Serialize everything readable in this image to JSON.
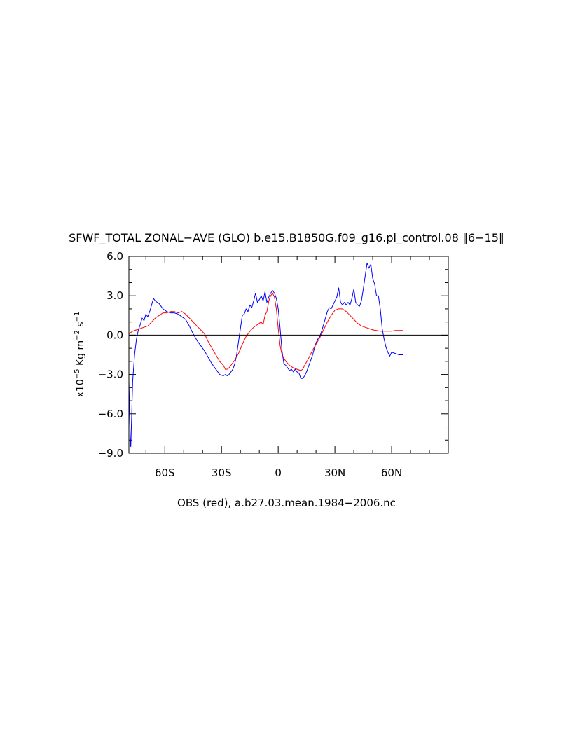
{
  "chart_data": {
    "type": "line",
    "title": "SFWF_TOTAL ZONAL−AVE (GLO) b.e15.B1850G.f09_g16.pi_control.08 ‖6−15‖",
    "xlabel": "OBS (red), a.b27.03.mean.1984−2006.nc",
    "ylabel": {
      "prefix": "x10",
      "exp1": "−5",
      "mid": " Kg m",
      "exp2": "−2",
      "mid2": " s",
      "exp3": "−1"
    },
    "xlim": [
      -79,
      90
    ],
    "ylim": [
      -9.0,
      6.0
    ],
    "x_ticks": [
      {
        "value": -60,
        "label": "60S"
      },
      {
        "value": -30,
        "label": "30S"
      },
      {
        "value": 0,
        "label": "0"
      },
      {
        "value": 30,
        "label": "30N"
      },
      {
        "value": 60,
        "label": "60N"
      }
    ],
    "y_ticks": [
      {
        "value": 6.0,
        "label": "6.0"
      },
      {
        "value": 3.0,
        "label": "3.0"
      },
      {
        "value": 0.0,
        "label": "0.0"
      },
      {
        "value": -3.0,
        "label": "−3.0"
      },
      {
        "value": -6.0,
        "label": "−6.0"
      },
      {
        "value": -9.0,
        "label": "−9.0"
      }
    ],
    "reference_line": 0.0,
    "grid": false,
    "legend": "none",
    "series": [
      {
        "color": "#0000ff",
        "points": [
          [
            -79,
            -3.5
          ],
          [
            -78.3,
            -8.0
          ],
          [
            -78,
            -8.5
          ],
          [
            -77.7,
            -7.0
          ],
          [
            -77,
            -3.5
          ],
          [
            -76,
            -1.5
          ],
          [
            -75,
            -0.3
          ],
          [
            -74,
            0.4
          ],
          [
            -73,
            0.8
          ],
          [
            -72,
            1.3
          ],
          [
            -71,
            1.1
          ],
          [
            -70,
            1.6
          ],
          [
            -69,
            1.4
          ],
          [
            -68,
            1.8
          ],
          [
            -67,
            2.3
          ],
          [
            -66,
            2.8
          ],
          [
            -65,
            2.6
          ],
          [
            -63,
            2.4
          ],
          [
            -61,
            2.0
          ],
          [
            -59,
            1.8
          ],
          [
            -57,
            1.7
          ],
          [
            -55,
            1.7
          ],
          [
            -53,
            1.6
          ],
          [
            -51,
            1.4
          ],
          [
            -49,
            1.2
          ],
          [
            -47,
            0.7
          ],
          [
            -45,
            0.1
          ],
          [
            -43,
            -0.4
          ],
          [
            -41,
            -0.8
          ],
          [
            -39,
            -1.2
          ],
          [
            -37,
            -1.7
          ],
          [
            -35,
            -2.2
          ],
          [
            -33,
            -2.6
          ],
          [
            -31,
            -3.0
          ],
          [
            -29,
            -3.1
          ],
          [
            -28,
            -3.0
          ],
          [
            -27,
            -3.1
          ],
          [
            -26,
            -3.0
          ],
          [
            -25,
            -2.8
          ],
          [
            -24,
            -2.6
          ],
          [
            -23,
            -2.2
          ],
          [
            -22,
            -1.5
          ],
          [
            -21,
            -0.5
          ],
          [
            -20,
            0.5
          ],
          [
            -19,
            1.5
          ],
          [
            -18,
            1.6
          ],
          [
            -17,
            2.0
          ],
          [
            -16,
            1.8
          ],
          [
            -15,
            2.3
          ],
          [
            -14,
            2.1
          ],
          [
            -13,
            2.6
          ],
          [
            -12,
            3.2
          ],
          [
            -11,
            2.5
          ],
          [
            -10,
            2.7
          ],
          [
            -9,
            3.0
          ],
          [
            -8,
            2.6
          ],
          [
            -7,
            3.3
          ],
          [
            -6,
            2.5
          ],
          [
            -5,
            2.9
          ],
          [
            -4,
            3.2
          ],
          [
            -3,
            3.4
          ],
          [
            -2,
            3.2
          ],
          [
            -1,
            2.8
          ],
          [
            0,
            2.0
          ],
          [
            1,
            0.5
          ],
          [
            2,
            -1.2
          ],
          [
            3,
            -2.2
          ],
          [
            4,
            -2.3
          ],
          [
            5,
            -2.5
          ],
          [
            6,
            -2.7
          ],
          [
            7,
            -2.6
          ],
          [
            8,
            -2.8
          ],
          [
            9,
            -2.6
          ],
          [
            10,
            -2.8
          ],
          [
            11,
            -2.9
          ],
          [
            12,
            -3.3
          ],
          [
            13,
            -3.3
          ],
          [
            14,
            -3.1
          ],
          [
            15,
            -2.8
          ],
          [
            16,
            -2.4
          ],
          [
            17,
            -2.0
          ],
          [
            18,
            -1.6
          ],
          [
            19,
            -1.1
          ],
          [
            20,
            -0.6
          ],
          [
            21,
            -0.3
          ],
          [
            22,
            -0.1
          ],
          [
            23,
            0.3
          ],
          [
            24,
            0.8
          ],
          [
            25,
            1.3
          ],
          [
            26,
            1.8
          ],
          [
            27,
            2.1
          ],
          [
            28,
            2.0
          ],
          [
            29,
            2.3
          ],
          [
            30,
            2.6
          ],
          [
            31,
            2.9
          ],
          [
            32,
            3.6
          ],
          [
            33,
            2.5
          ],
          [
            34,
            2.3
          ],
          [
            35,
            2.5
          ],
          [
            36,
            2.3
          ],
          [
            37,
            2.5
          ],
          [
            38,
            2.3
          ],
          [
            39,
            2.8
          ],
          [
            40,
            3.5
          ],
          [
            41,
            2.5
          ],
          [
            42,
            2.3
          ],
          [
            43,
            2.2
          ],
          [
            44,
            2.6
          ],
          [
            45,
            3.5
          ],
          [
            46,
            4.5
          ],
          [
            47,
            5.5
          ],
          [
            48,
            5.1
          ],
          [
            49,
            5.4
          ],
          [
            50,
            4.3
          ],
          [
            51,
            3.9
          ],
          [
            52,
            3.0
          ],
          [
            53,
            3.0
          ],
          [
            54,
            2.0
          ],
          [
            55,
            0.5
          ],
          [
            56,
            -0.3
          ],
          [
            57,
            -0.9
          ],
          [
            58,
            -1.3
          ],
          [
            59,
            -1.6
          ],
          [
            60,
            -1.3
          ],
          [
            62,
            -1.4
          ],
          [
            64,
            -1.5
          ],
          [
            66,
            -1.5
          ]
        ]
      },
      {
        "color": "#ff0000",
        "points": [
          [
            -79,
            0.1
          ],
          [
            -77,
            0.3
          ],
          [
            -75,
            0.4
          ],
          [
            -73,
            0.5
          ],
          [
            -71,
            0.6
          ],
          [
            -69,
            0.7
          ],
          [
            -67,
            1.0
          ],
          [
            -65,
            1.3
          ],
          [
            -63,
            1.5
          ],
          [
            -61,
            1.7
          ],
          [
            -59,
            1.7
          ],
          [
            -57,
            1.8
          ],
          [
            -55,
            1.8
          ],
          [
            -53,
            1.7
          ],
          [
            -51,
            1.8
          ],
          [
            -49,
            1.6
          ],
          [
            -47,
            1.3
          ],
          [
            -45,
            1.0
          ],
          [
            -43,
            0.7
          ],
          [
            -41,
            0.4
          ],
          [
            -39,
            0.1
          ],
          [
            -37,
            -0.5
          ],
          [
            -35,
            -1.0
          ],
          [
            -33,
            -1.5
          ],
          [
            -31,
            -2.0
          ],
          [
            -29,
            -2.3
          ],
          [
            -28,
            -2.6
          ],
          [
            -27,
            -2.6
          ],
          [
            -26,
            -2.5
          ],
          [
            -25,
            -2.3
          ],
          [
            -23,
            -1.9
          ],
          [
            -21,
            -1.4
          ],
          [
            -19,
            -0.7
          ],
          [
            -17,
            -0.1
          ],
          [
            -15,
            0.3
          ],
          [
            -13,
            0.6
          ],
          [
            -11,
            0.8
          ],
          [
            -9,
            1.0
          ],
          [
            -8,
            0.8
          ],
          [
            -7,
            1.5
          ],
          [
            -6,
            1.8
          ],
          [
            -5,
            2.6
          ],
          [
            -4,
            3.0
          ],
          [
            -3,
            3.2
          ],
          [
            -2,
            2.9
          ],
          [
            -1,
            2.0
          ],
          [
            0,
            0.5
          ],
          [
            1,
            -0.8
          ],
          [
            2,
            -1.5
          ],
          [
            4,
            -2.0
          ],
          [
            6,
            -2.3
          ],
          [
            8,
            -2.5
          ],
          [
            10,
            -2.6
          ],
          [
            12,
            -2.7
          ],
          [
            13,
            -2.6
          ],
          [
            14,
            -2.3
          ],
          [
            16,
            -1.8
          ],
          [
            18,
            -1.2
          ],
          [
            20,
            -0.7
          ],
          [
            22,
            -0.2
          ],
          [
            24,
            0.4
          ],
          [
            26,
            1.0
          ],
          [
            28,
            1.5
          ],
          [
            30,
            1.9
          ],
          [
            32,
            2.0
          ],
          [
            34,
            2.0
          ],
          [
            36,
            1.8
          ],
          [
            38,
            1.5
          ],
          [
            40,
            1.2
          ],
          [
            42,
            0.9
          ],
          [
            44,
            0.7
          ],
          [
            46,
            0.6
          ],
          [
            48,
            0.5
          ],
          [
            50,
            0.4
          ],
          [
            52,
            0.35
          ],
          [
            54,
            0.3
          ],
          [
            56,
            0.3
          ],
          [
            58,
            0.3
          ],
          [
            60,
            0.3
          ],
          [
            62,
            0.35
          ],
          [
            64,
            0.35
          ],
          [
            66,
            0.35
          ]
        ]
      }
    ]
  }
}
